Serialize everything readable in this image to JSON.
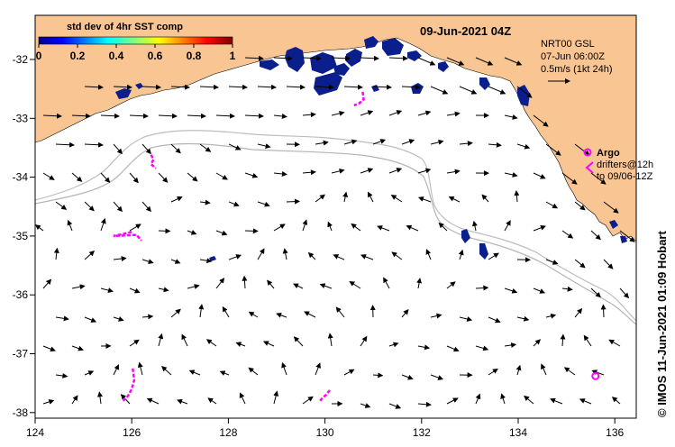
{
  "title": "09-Jun-2021 04Z",
  "colorbar": {
    "title": "std dev of 4hr SST comp",
    "ticks": [
      "0",
      "0.2",
      "0.4",
      "0.6",
      "0.8",
      "1"
    ],
    "tick_values": [
      0,
      0.2,
      0.4,
      0.6,
      0.8,
      1
    ]
  },
  "currents_info": {
    "line1": "NRT00 GSL",
    "line2": "07-Jun 06:00Z",
    "line3": "0.5m/s (1kt 24h)"
  },
  "argo_legend": {
    "symbol_label": "Argo",
    "line2": "drifters@12h",
    "line3": "to 09/06-12Z"
  },
  "credit": "© IMOS 11-Jun-2021 01:09 Hobart",
  "axes": {
    "x_ticks": [
      "124",
      "126",
      "128",
      "130",
      "132",
      "134",
      "136"
    ],
    "x_values": [
      124,
      126,
      128,
      130,
      132,
      134,
      136
    ],
    "y_ticks": [
      "-32",
      "-33",
      "-34",
      "-35",
      "-36",
      "-37",
      "-38"
    ],
    "y_values": [
      -32,
      -33,
      -34,
      -35,
      -36,
      -37,
      -38
    ],
    "lon_range": [
      124,
      136.5
    ],
    "lat_range": [
      -31.4,
      -38.1
    ]
  },
  "colors": {
    "land": "#f9c592",
    "ocean": "#ffffff",
    "sst_patch": "#0a1e8c",
    "drifter": "#ff00ff",
    "isobath": "#b4b4b4"
  },
  "argo_float": {
    "lon": 135.6,
    "lat": -37.38
  },
  "drifter_tracks": [
    [
      [
        130.78,
        -32.55
      ],
      [
        130.8,
        -32.68
      ],
      [
        130.7,
        -32.75
      ],
      [
        130.6,
        -32.78
      ]
    ],
    [
      [
        126.4,
        -33.62
      ],
      [
        126.45,
        -33.7
      ],
      [
        126.4,
        -33.78
      ],
      [
        126.5,
        -33.85
      ]
    ],
    [
      [
        126.0,
        -34.93
      ],
      [
        125.8,
        -34.97
      ],
      [
        125.62,
        -35.0
      ],
      [
        126.1,
        -34.98
      ],
      [
        126.2,
        -35.08
      ]
    ],
    [
      [
        126.02,
        -37.25
      ],
      [
        126.05,
        -37.45
      ],
      [
        126.0,
        -37.6
      ],
      [
        125.92,
        -37.72
      ],
      [
        125.82,
        -37.8
      ]
    ],
    [
      [
        130.1,
        -37.62
      ],
      [
        130.02,
        -37.7
      ],
      [
        129.95,
        -37.75
      ],
      [
        129.9,
        -37.8
      ]
    ]
  ]
}
